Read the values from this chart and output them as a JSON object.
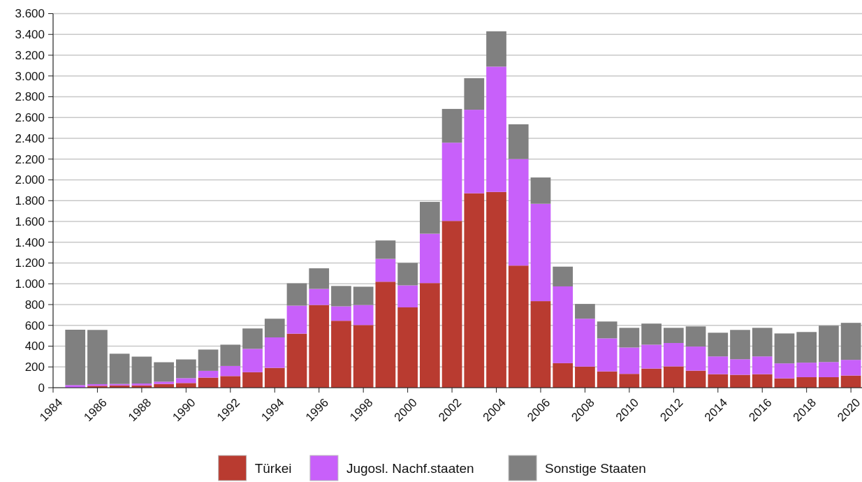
{
  "chart_data": {
    "type": "bar",
    "stacked": true,
    "x": [
      1985,
      1986,
      1987,
      1988,
      1989,
      1990,
      1991,
      1992,
      1993,
      1994,
      1995,
      1996,
      1997,
      1998,
      1999,
      2000,
      2001,
      2002,
      2003,
      2004,
      2005,
      2006,
      2007,
      2008,
      2009,
      2010,
      2011,
      2012,
      2013,
      2014,
      2015,
      2016,
      2017,
      2018,
      2019,
      2020
    ],
    "series": [
      {
        "name": "Türkei",
        "color": "#b93b30",
        "values": [
          null,
          18,
          22,
          22,
          36,
          45,
          97,
          112,
          149,
          191,
          520,
          796,
          644,
          603,
          1020,
          773,
          1007,
          1605,
          1871,
          1884,
          1175,
          833,
          236,
          203,
          157,
          133,
          184,
          205,
          164,
          130,
          124,
          130,
          90,
          101,
          101,
          117
        ]
      },
      {
        "name": "Jugosl. Nachf.staaten",
        "color": "#c860fa",
        "values": [
          25,
          16,
          14,
          18,
          22,
          47,
          65,
          97,
          225,
          293,
          270,
          155,
          139,
          193,
          220,
          212,
          475,
          753,
          804,
          1206,
          1026,
          937,
          739,
          461,
          318,
          254,
          230,
          225,
          232,
          171,
          150,
          171,
          144,
          140,
          146,
          151
        ]
      },
      {
        "name": "Sonstige Staaten",
        "color": "#808080",
        "values": [
          533,
          522,
          291,
          259,
          187,
          180,
          205,
          205,
          196,
          180,
          215,
          198,
          196,
          176,
          177,
          216,
          306,
          325,
          304,
          340,
          334,
          253,
          190,
          142,
          162,
          189,
          203,
          146,
          194,
          228,
          282,
          275,
          288,
          295,
          350,
          356
        ]
      }
    ],
    "xlim": [
      1984,
      2020.5
    ],
    "xticks": [
      1984,
      1986,
      1988,
      1990,
      1992,
      1994,
      1996,
      1998,
      2000,
      2002,
      2004,
      2006,
      2008,
      2010,
      2012,
      2014,
      2016,
      2018,
      2020
    ],
    "ylim": [
      0,
      3600
    ],
    "yticks": [
      {
        "value": 0,
        "label": "0"
      },
      {
        "value": 200,
        "label": "200"
      },
      {
        "value": 400,
        "label": "400"
      },
      {
        "value": 600,
        "label": "600"
      },
      {
        "value": 800,
        "label": "800"
      },
      {
        "value": 1000,
        "label": "1.000"
      },
      {
        "value": 1200,
        "label": "1.200"
      },
      {
        "value": 1400,
        "label": "1.400"
      },
      {
        "value": 1600,
        "label": "1.600"
      },
      {
        "value": 1800,
        "label": "1.800"
      },
      {
        "value": 2000,
        "label": "2.000"
      },
      {
        "value": 2200,
        "label": "2.200"
      },
      {
        "value": 2400,
        "label": "2.400"
      },
      {
        "value": 2600,
        "label": "2.600"
      },
      {
        "value": 2800,
        "label": "2.800"
      },
      {
        "value": 3000,
        "label": "3.000"
      },
      {
        "value": 3200,
        "label": "3.200"
      },
      {
        "value": 3400,
        "label": "3.400"
      },
      {
        "value": 3600,
        "label": "3.600"
      }
    ],
    "grid": "y",
    "legend": "bottom"
  }
}
